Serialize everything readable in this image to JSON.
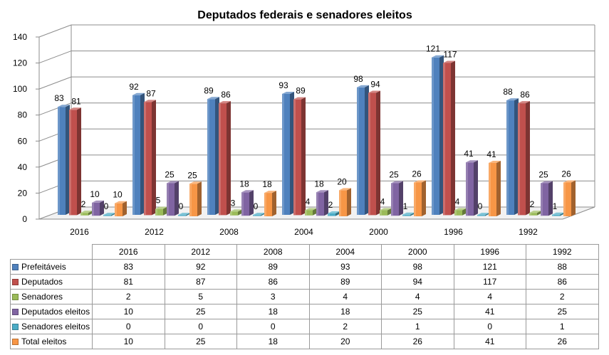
{
  "chart_data": {
    "type": "bar",
    "title": "Deputados federais e senadores eleitos",
    "categories": [
      "2016",
      "2012",
      "2008",
      "2004",
      "2000",
      "1996",
      "1992"
    ],
    "ylim": [
      0,
      140
    ],
    "yticks": [
      0,
      20,
      40,
      60,
      80,
      100,
      120,
      140
    ],
    "grid": true,
    "legend": "table-below",
    "series": [
      {
        "name": "Prefeitáveis",
        "color": "#4f81bd",
        "values": [
          83,
          92,
          89,
          93,
          98,
          121,
          88
        ]
      },
      {
        "name": "Deputados",
        "color": "#c0504d",
        "values": [
          81,
          87,
          86,
          89,
          94,
          117,
          86
        ]
      },
      {
        "name": "Senadores",
        "color": "#9bbb59",
        "values": [
          2,
          5,
          3,
          4,
          4,
          4,
          2
        ]
      },
      {
        "name": "Deputados eleitos",
        "color": "#8064a2",
        "values": [
          10,
          25,
          18,
          18,
          25,
          41,
          25
        ]
      },
      {
        "name": "Senadores eleitos",
        "color": "#4bacc6",
        "values": [
          0,
          0,
          0,
          2,
          1,
          0,
          1
        ]
      },
      {
        "name": "Total eleitos",
        "color": "#f79646",
        "values": [
          10,
          25,
          18,
          20,
          26,
          41,
          26
        ]
      }
    ]
  }
}
